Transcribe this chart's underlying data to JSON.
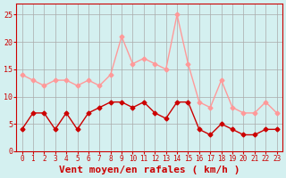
{
  "hours": [
    0,
    1,
    2,
    3,
    4,
    5,
    6,
    7,
    8,
    9,
    10,
    11,
    12,
    13,
    14,
    15,
    16,
    17,
    18,
    19,
    20,
    21,
    22,
    23
  ],
  "wind_avg": [
    4,
    7,
    7,
    4,
    7,
    4,
    7,
    8,
    9,
    9,
    8,
    9,
    7,
    6,
    9,
    9,
    4,
    3,
    5,
    4,
    3,
    3,
    4,
    4
  ],
  "wind_gust": [
    14,
    13,
    12,
    13,
    13,
    12,
    13,
    12,
    14,
    21,
    16,
    17,
    16,
    15,
    25,
    16,
    9,
    8,
    13,
    8,
    7,
    7,
    9,
    7
  ],
  "avg_color": "#cc0000",
  "gust_color": "#ff9999",
  "bg_color": "#d4f0f0",
  "grid_color": "#aaaaaa",
  "xlabel": "Vent moyen/en rafales ( km/h )",
  "xlabel_color": "#cc0000",
  "xlabel_fontsize": 8,
  "ylim": [
    0,
    27
  ],
  "yticks": [
    0,
    5,
    10,
    15,
    20,
    25
  ],
  "tick_color": "#cc0000",
  "markersize": 2.5,
  "linewidth": 1.0
}
